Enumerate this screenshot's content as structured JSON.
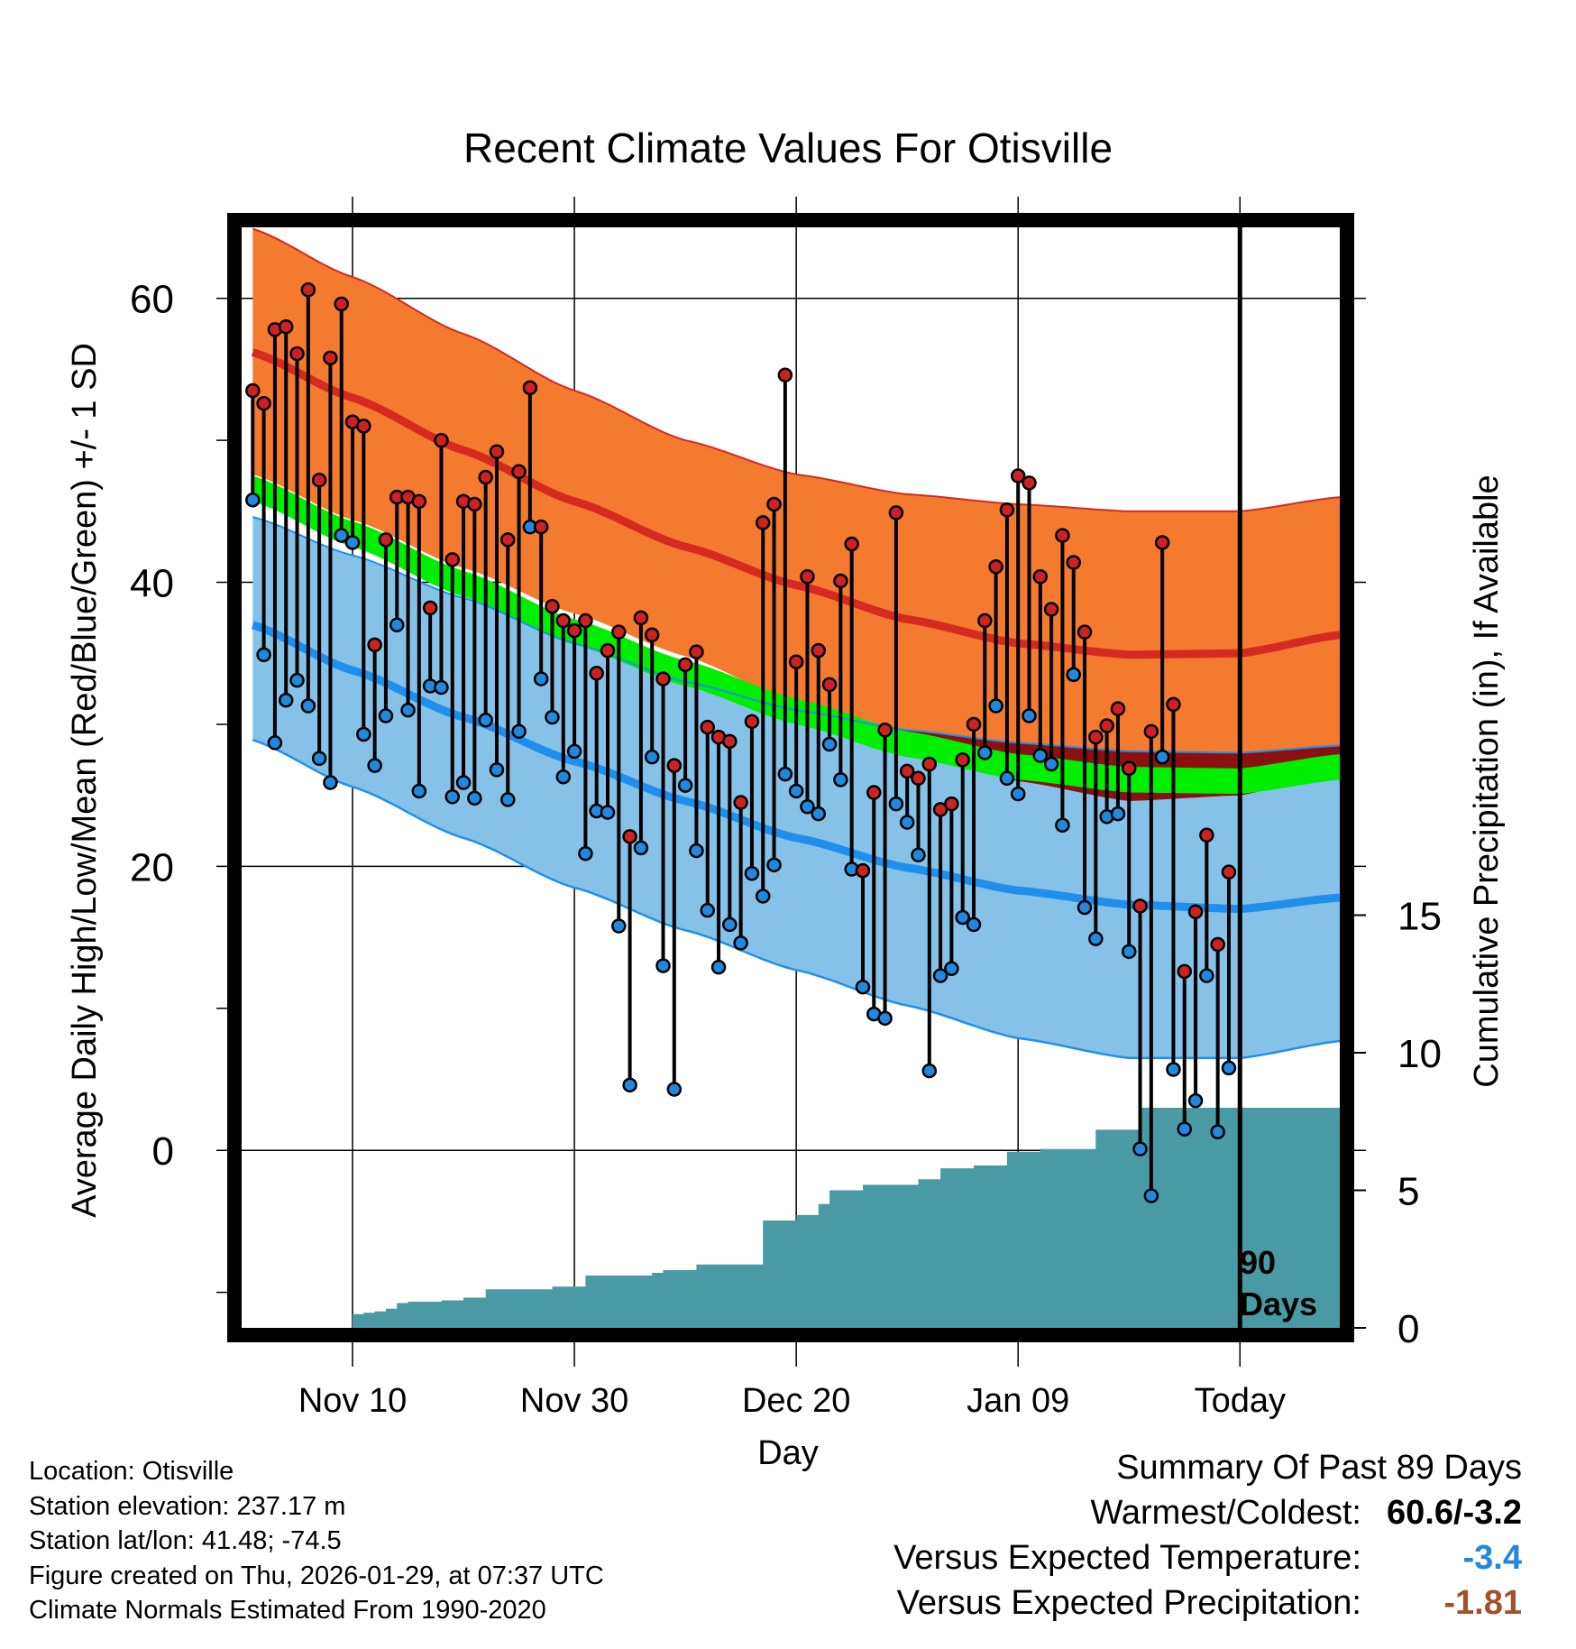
{
  "chart_data": {
    "type": "line",
    "title": "Recent Climate Values For Otisville",
    "xlabel": "Day",
    "ylabel_left": "Average Daily High/Low/Mean (Red/Blue/Green) +/- 1 SD",
    "ylabel_right": "Cumulative Precipitation (in), If Available",
    "ylim_left": [
      -12.5,
      65
    ],
    "ylim_right": [
      0,
      40
    ],
    "x_range_days": [
      -90,
      9
    ],
    "x_ticks": [
      {
        "day": -80,
        "label": "Nov 10"
      },
      {
        "day": -60,
        "label": "Nov 30"
      },
      {
        "day": -40,
        "label": "Dec 20"
      },
      {
        "day": -20,
        "label": "Jan 09"
      },
      {
        "day": 0,
        "label": "Today"
      }
    ],
    "y_ticks_left": [
      0,
      20,
      40,
      60
    ],
    "y_ticks_right": [
      0,
      5,
      10,
      15
    ],
    "today_marker": {
      "day": 0,
      "label_line1": "90",
      "label_line2": "Days"
    },
    "normals": {
      "days": [
        -89,
        -80,
        -70,
        -60,
        -50,
        -40,
        -30,
        -20,
        -10,
        0,
        9
      ],
      "high_mean": [
        56.2,
        53.0,
        49.3,
        45.7,
        42.5,
        39.8,
        37.4,
        35.7,
        34.9,
        35.0,
        36.3
      ],
      "high_plus_sd": [
        64.9,
        61.5,
        57.5,
        53.5,
        50.0,
        47.6,
        46.2,
        45.5,
        45.0,
        45.0,
        46.0
      ],
      "low_mean": [
        37.0,
        33.8,
        30.5,
        27.4,
        24.6,
        22.0,
        19.9,
        18.3,
        17.3,
        17.0,
        17.8
      ],
      "low_minus_sd": [
        28.9,
        25.6,
        22.0,
        18.5,
        15.5,
        12.7,
        10.2,
        7.9,
        6.5,
        6.5,
        7.7
      ],
      "low_plus_sd": [
        44.6,
        41.9,
        38.9,
        35.7,
        33.0,
        31.0,
        29.6,
        28.7,
        28.1,
        28.0,
        28.5
      ],
      "mean_mean": [
        46.6,
        43.4,
        39.9,
        36.5,
        33.6,
        30.9,
        28.6,
        27.0,
        26.1,
        26.0,
        27.0
      ],
      "high_minus_sd": [
        47.6,
        44.4,
        41.0,
        37.8,
        34.8,
        31.5,
        28.6,
        26.0,
        24.6,
        25.0,
        26.7
      ]
    },
    "series": [
      {
        "name": "Daily High",
        "color": "#cc2222",
        "values": [
          53.5,
          52.6,
          57.8,
          58.0,
          56.1,
          60.6,
          47.2,
          55.8,
          59.6,
          51.3,
          51.0,
          35.6,
          43.0,
          46.0,
          46.0,
          45.7,
          38.2,
          50.0,
          41.6,
          45.7,
          45.5,
          47.4,
          49.2,
          43.0,
          47.8,
          53.7,
          43.9,
          38.3,
          37.3,
          36.6,
          37.3,
          33.6,
          35.2,
          36.5,
          22.1,
          37.5,
          36.3,
          33.2,
          27.1,
          34.2,
          35.1,
          29.8,
          29.1,
          28.8,
          24.5,
          30.2,
          44.2,
          45.5,
          54.6,
          34.4,
          40.4,
          35.2,
          32.8,
          40.1,
          42.7,
          19.7,
          25.2,
          29.6,
          44.9,
          26.7,
          26.2,
          27.2,
          24.0,
          24.4,
          27.5,
          30.0,
          37.3,
          41.1,
          45.1,
          47.5,
          47.0,
          40.4,
          38.1,
          43.3,
          41.4,
          36.5,
          29.1,
          29.9,
          31.1,
          26.9,
          17.2,
          29.5,
          42.8,
          31.4,
          12.6,
          16.8,
          22.2,
          14.5,
          19.6
        ],
        "marker_only": [
          false,
          false,
          false,
          false,
          false,
          false,
          false,
          false,
          false,
          false,
          false,
          false,
          false,
          false,
          false,
          false,
          false,
          false,
          false,
          false,
          false,
          false,
          false,
          false,
          false,
          false,
          false,
          false,
          false,
          false,
          false,
          false,
          false,
          false,
          false,
          false,
          false,
          false,
          false,
          false,
          false,
          false,
          false,
          false,
          false,
          false,
          false,
          false,
          false,
          false,
          false,
          false,
          false,
          false,
          false,
          false,
          false,
          false,
          false,
          false,
          false,
          false,
          false,
          false,
          false,
          false,
          false,
          false,
          false,
          false,
          false,
          false,
          false,
          false,
          false,
          false,
          false,
          false,
          false,
          false,
          false,
          false,
          false,
          false,
          false,
          false,
          false,
          false,
          false
        ]
      },
      {
        "name": "Daily Low",
        "color": "#2288dd",
        "values": [
          45.8,
          34.9,
          28.7,
          31.7,
          33.1,
          31.3,
          27.6,
          25.9,
          43.3,
          42.8,
          29.3,
          27.1,
          30.6,
          37.0,
          31.0,
          25.3,
          32.7,
          32.6,
          24.9,
          25.9,
          24.8,
          30.3,
          26.8,
          24.7,
          29.5,
          43.9,
          33.2,
          30.5,
          26.3,
          28.1,
          20.9,
          23.9,
          23.8,
          15.8,
          4.6,
          21.3,
          27.7,
          13.0,
          4.3,
          25.7,
          21.1,
          16.9,
          12.9,
          15.9,
          14.6,
          19.5,
          17.9,
          20.1,
          26.5,
          25.3,
          24.2,
          23.7,
          28.6,
          26.1,
          19.8,
          11.5,
          9.6,
          9.3,
          24.4,
          23.1,
          20.8,
          5.6,
          12.3,
          12.8,
          16.4,
          15.9,
          28.0,
          31.3,
          26.2,
          25.1,
          30.6,
          27.8,
          27.2,
          22.9,
          33.5,
          17.1,
          14.9,
          23.5,
          23.7,
          14.0,
          0.1,
          -3.2,
          27.7,
          5.7,
          1.5,
          3.5,
          12.3,
          1.3,
          5.8
        ]
      }
    ],
    "precipitation_cumulative": {
      "days": [
        -90,
        -81,
        -80,
        -79,
        -78,
        -77,
        -76,
        -75,
        -74,
        -73,
        -72,
        -71,
        -70,
        -69,
        -68,
        -67,
        -66,
        -65,
        -64,
        -63,
        -62,
        -61,
        -60,
        -59,
        -58,
        -57,
        -56,
        -55,
        -54,
        -53,
        -52,
        -51,
        -50,
        -49,
        -48,
        -47,
        -46,
        -45,
        -44,
        -43,
        -42,
        -41,
        -40,
        -39,
        -38,
        -37,
        -36,
        -35,
        -34,
        -33,
        -32,
        -31,
        -30,
        -29,
        -28,
        -27,
        -26,
        -25,
        -24,
        -23,
        -22,
        -21,
        -20,
        -19,
        -18,
        -17,
        -16,
        -15,
        -14,
        -13,
        -12,
        -11,
        -10,
        -9,
        -8,
        -7,
        -6,
        -5,
        -4,
        -3,
        -2,
        -1,
        0,
        9
      ],
      "values": [
        0,
        0,
        0.5,
        0.55,
        0.6,
        0.7,
        0.9,
        0.95,
        0.95,
        0.95,
        1.0,
        1.0,
        1.1,
        1.1,
        1.4,
        1.4,
        1.4,
        1.4,
        1.4,
        1.4,
        1.5,
        1.5,
        1.5,
        1.9,
        1.9,
        1.9,
        1.9,
        1.9,
        1.9,
        2.0,
        2.1,
        2.1,
        2.1,
        2.3,
        2.3,
        2.3,
        2.3,
        2.3,
        2.3,
        3.9,
        3.9,
        3.9,
        4.1,
        4.1,
        4.5,
        5.0,
        5.0,
        5.0,
        5.2,
        5.2,
        5.2,
        5.2,
        5.2,
        5.4,
        5.4,
        5.8,
        5.8,
        5.8,
        5.9,
        5.9,
        5.9,
        6.4,
        6.4,
        6.4,
        6.5,
        6.5,
        6.5,
        6.5,
        6.5,
        7.2,
        7.2,
        7.2,
        7.2,
        8.0,
        8.0,
        8.0,
        8.0,
        8.0,
        8.0,
        8.0,
        8.0,
        8.0,
        8.0,
        8.0
      ]
    }
  },
  "info": {
    "location": "Location: Otisville",
    "elevation": "Station elevation: 237.17 m",
    "latlon": "Station lat/lon: 41.48; -74.5",
    "created": "Figure created on Thu, 2026-01-29, at 07:37 UTC",
    "normals": "Climate Normals Estimated From 1990-2020"
  },
  "summary": {
    "title": "Summary Of Past 89 Days",
    "warmest_label": "Warmest/Coldest:",
    "warmest_value": "60.6/-3.2",
    "temp_label": "Versus Expected Temperature:",
    "temp_value": "-3.4",
    "temp_color": "#2288dd",
    "precip_label": "Versus Expected Precipitation:",
    "precip_value": "-1.81",
    "precip_color": "#a0522d"
  },
  "colors": {
    "high_band": "#f47a30",
    "high_line": "#d42a22",
    "low_band": "#86c2e8",
    "low_line": "#1f8fee",
    "mean_band": "#00ee00",
    "overlap": "#8b1010",
    "precip": "#4a9aa5",
    "frame": "#000000"
  }
}
